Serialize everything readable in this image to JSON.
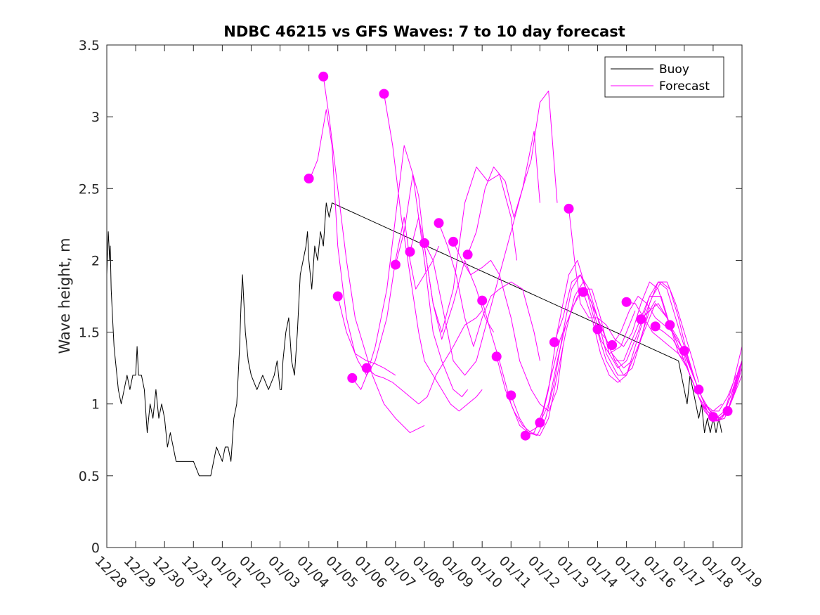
{
  "chart_data": {
    "type": "line",
    "title": "NDBC 46215 vs GFS Waves: 7 to 10 day forecast",
    "xlabel": "",
    "ylabel": "Wave height, m",
    "xlim": [
      0,
      22
    ],
    "ylim": [
      0,
      3.5
    ],
    "x_unit": "days since 12/28",
    "yticks": [
      0,
      0.5,
      1,
      1.5,
      2,
      2.5,
      3,
      3.5
    ],
    "ytick_labels": [
      "0",
      "0.5",
      "1",
      "1.5",
      "2",
      "2.5",
      "3",
      "3.5"
    ],
    "xticks": [
      0,
      1,
      2,
      3,
      4,
      5,
      6,
      7,
      8,
      9,
      10,
      11,
      12,
      13,
      14,
      15,
      16,
      17,
      18,
      19,
      20,
      21,
      22
    ],
    "xtick_labels": [
      "12/28",
      "12/29",
      "12/30",
      "12/31",
      "01/01",
      "01/02",
      "01/03",
      "01/04",
      "01/05",
      "01/06",
      "01/07",
      "01/08",
      "01/09",
      "01/10",
      "01/11",
      "01/12",
      "01/13",
      "01/14",
      "01/15",
      "01/16",
      "01/17",
      "01/18",
      "01/19"
    ],
    "legend": {
      "position": "top-right",
      "entries": [
        "Buoy",
        "Forecast"
      ]
    },
    "colors": {
      "buoy": "#000000",
      "forecast": "#ff00ff"
    },
    "series": [
      {
        "name": "Buoy",
        "x": [
          0.0,
          0.05,
          0.1,
          0.12,
          0.15,
          0.2,
          0.25,
          0.3,
          0.35,
          0.4,
          0.5,
          0.6,
          0.7,
          0.8,
          0.9,
          1.0,
          1.05,
          1.1,
          1.2,
          1.3,
          1.4,
          1.5,
          1.6,
          1.7,
          1.8,
          1.9,
          2.0,
          2.1,
          2.2,
          2.3,
          2.4,
          2.6,
          2.8,
          3.0,
          3.2,
          3.4,
          3.6,
          3.8,
          4.0,
          4.1,
          4.2,
          4.3,
          4.4,
          4.5,
          4.55,
          4.6,
          4.65,
          4.7,
          4.8,
          4.9,
          5.0,
          5.2,
          5.4,
          5.6,
          5.8,
          5.9,
          6.0,
          6.05,
          6.1,
          6.2,
          6.3,
          6.4,
          6.5,
          6.6,
          6.7,
          6.8,
          6.9,
          6.95,
          7.0,
          7.1,
          7.2,
          7.3,
          7.4,
          7.5,
          7.6,
          7.7,
          7.8,
          19.8,
          19.9,
          20.0,
          20.1,
          20.2,
          20.3,
          20.4,
          20.5,
          20.6,
          20.7,
          20.8,
          20.9,
          21.0,
          21.1,
          21.2,
          21.3
        ],
        "values": [
          1.9,
          2.2,
          2.0,
          2.1,
          1.8,
          1.6,
          1.4,
          1.3,
          1.2,
          1.1,
          1.0,
          1.1,
          1.2,
          1.1,
          1.2,
          1.2,
          1.4,
          1.2,
          1.2,
          1.1,
          0.8,
          1.0,
          0.9,
          1.1,
          0.9,
          1.0,
          0.9,
          0.7,
          0.8,
          0.7,
          0.6,
          0.6,
          0.6,
          0.6,
          0.5,
          0.5,
          0.5,
          0.7,
          0.6,
          0.7,
          0.7,
          0.6,
          0.9,
          1.0,
          1.2,
          1.4,
          1.7,
          1.9,
          1.5,
          1.3,
          1.2,
          1.1,
          1.2,
          1.1,
          1.2,
          1.3,
          1.1,
          1.1,
          1.3,
          1.5,
          1.6,
          1.3,
          1.2,
          1.5,
          1.9,
          2.0,
          2.1,
          2.2,
          2.0,
          1.8,
          2.1,
          2.0,
          2.2,
          2.1,
          2.4,
          2.3,
          2.4,
          1.3,
          1.2,
          1.1,
          1.0,
          1.2,
          1.1,
          1.0,
          0.9,
          1.0,
          0.8,
          0.9,
          0.8,
          0.9,
          0.8,
          0.9,
          0.8
        ]
      },
      {
        "name": "Forecast",
        "x": [
          7.0,
          7.3,
          7.6,
          7.8,
          8.0,
          8.3,
          8.6,
          9.0,
          9.3,
          9.6,
          10.0
        ],
        "values": [
          2.55,
          2.7,
          3.05,
          2.8,
          2.1,
          1.6,
          1.35,
          1.3,
          1.28,
          1.25,
          1.2
        ]
      },
      {
        "name": "Forecast",
        "x": [
          7.5,
          7.7,
          8.0,
          8.3,
          8.6,
          8.9,
          9.2,
          9.6,
          10.0,
          10.5,
          11.0
        ],
        "values": [
          3.28,
          3.0,
          2.5,
          2.0,
          1.6,
          1.4,
          1.2,
          1.0,
          0.9,
          0.8,
          0.85
        ]
      },
      {
        "name": "Forecast",
        "x": [
          8.0,
          8.3,
          8.7,
          9.0,
          9.3,
          9.7,
          10.0,
          10.3,
          10.5,
          10.7,
          11.0,
          11.3,
          11.5
        ],
        "values": [
          1.75,
          1.5,
          1.3,
          1.2,
          1.3,
          1.6,
          2.0,
          2.3,
          2.0,
          1.8,
          1.9,
          2.0,
          2.1
        ]
      },
      {
        "name": "Forecast",
        "x": [
          8.5,
          8.8,
          9.0,
          9.3,
          9.7,
          10.0,
          10.3,
          10.6,
          11.0,
          11.3,
          11.6,
          12.0,
          12.3,
          12.5
        ],
        "values": [
          1.18,
          1.1,
          1.2,
          1.4,
          1.8,
          2.3,
          2.8,
          2.6,
          2.0,
          1.5,
          1.3,
          1.1,
          1.05,
          1.1
        ]
      },
      {
        "name": "Forecast",
        "x": [
          9.0,
          9.3,
          9.6,
          9.9,
          10.2,
          10.5,
          10.8,
          11.1,
          11.4,
          11.7,
          12.0,
          12.4,
          12.8,
          13.0
        ],
        "values": [
          1.25,
          1.2,
          1.18,
          1.15,
          1.1,
          1.05,
          1.0,
          1.05,
          1.2,
          1.3,
          1.4,
          1.55,
          1.6,
          1.65
        ]
      },
      {
        "name": "Forecast",
        "x": [
          9.6,
          9.9,
          10.2,
          10.5,
          10.8,
          11.0,
          11.3,
          11.6,
          11.9,
          12.2,
          12.5,
          12.8,
          13.0
        ],
        "values": [
          3.16,
          2.8,
          2.3,
          1.9,
          1.5,
          1.3,
          1.2,
          1.1,
          1.0,
          0.95,
          1.0,
          1.05,
          1.1
        ]
      },
      {
        "name": "Forecast",
        "x": [
          10.0,
          10.3,
          10.6,
          10.8,
          11.0,
          11.3,
          11.6,
          12.0,
          12.4,
          12.8,
          13.1,
          13.4
        ],
        "values": [
          1.97,
          2.2,
          2.6,
          2.45,
          2.1,
          1.7,
          1.45,
          1.7,
          2.0,
          1.8,
          1.6,
          1.5
        ]
      },
      {
        "name": "Forecast",
        "x": [
          10.5,
          10.8,
          11.0,
          11.3,
          11.6,
          12.0,
          12.4,
          12.8,
          13.2,
          13.6,
          14.0,
          14.2
        ],
        "values": [
          2.06,
          2.3,
          2.1,
          1.7,
          1.5,
          1.8,
          2.4,
          2.65,
          2.55,
          2.6,
          2.3,
          2.0
        ]
      },
      {
        "name": "Forecast",
        "x": [
          11.0,
          11.3,
          11.6,
          12.0,
          12.4,
          12.8,
          13.2,
          13.6,
          14.0,
          14.4,
          14.8,
          15.0
        ],
        "values": [
          2.12,
          2.0,
          1.7,
          1.3,
          1.2,
          1.3,
          1.6,
          1.9,
          2.2,
          2.5,
          2.9,
          2.4
        ]
      },
      {
        "name": "Forecast",
        "x": [
          11.5,
          11.8,
          12.1,
          12.4,
          12.7,
          13.0,
          13.3,
          13.6,
          14.0,
          14.4,
          14.8,
          15.0
        ],
        "values": [
          2.26,
          2.1,
          1.9,
          1.6,
          1.4,
          1.6,
          1.75,
          1.8,
          1.85,
          1.8,
          1.5,
          1.3
        ]
      },
      {
        "name": "Forecast",
        "x": [
          12.0,
          12.3,
          12.6,
          13.0,
          13.3,
          13.6,
          14.0,
          14.3,
          14.7,
          15.0,
          15.3,
          15.6,
          15.8
        ],
        "values": [
          2.13,
          2.0,
          1.9,
          1.95,
          2.0,
          1.9,
          1.6,
          1.3,
          1.1,
          1.0,
          0.95,
          1.1,
          1.4
        ]
      },
      {
        "name": "Forecast",
        "x": [
          12.5,
          12.8,
          13.1,
          13.4,
          13.8,
          14.1,
          14.4,
          14.7,
          15.0,
          15.3,
          15.6
        ],
        "values": [
          2.04,
          2.2,
          2.5,
          2.65,
          2.55,
          2.3,
          2.5,
          2.7,
          3.1,
          3.18,
          2.4
        ]
      },
      {
        "name": "Forecast",
        "x": [
          13.0,
          13.3,
          13.6,
          14.0,
          14.3,
          14.6,
          15.0,
          15.3,
          15.6,
          16.0,
          16.3,
          16.6,
          17.0,
          17.3,
          17.6,
          17.8
        ],
        "values": [
          1.72,
          1.5,
          1.3,
          1.0,
          0.85,
          0.8,
          0.85,
          1.1,
          1.5,
          1.9,
          2.0,
          1.8,
          1.5,
          1.3,
          1.2,
          1.15
        ]
      },
      {
        "name": "Forecast",
        "x": [
          13.5,
          13.8,
          14.1,
          14.4,
          14.7,
          15.0,
          15.3,
          15.6,
          15.9,
          16.2,
          16.5,
          16.8,
          17.1,
          17.4,
          17.8,
          18.1,
          18.3
        ],
        "values": [
          1.33,
          1.1,
          0.95,
          0.85,
          0.8,
          0.78,
          0.9,
          1.2,
          1.5,
          1.75,
          1.85,
          1.7,
          1.45,
          1.35,
          1.4,
          1.55,
          1.65
        ]
      },
      {
        "name": "Forecast",
        "x": [
          14.0,
          14.3,
          14.6,
          14.9,
          15.2,
          15.5,
          15.8,
          16.1,
          16.4,
          16.7,
          17.0,
          17.3,
          17.7,
          18.0,
          18.4,
          18.8,
          19.0
        ],
        "values": [
          1.06,
          0.9,
          0.8,
          0.78,
          0.9,
          1.15,
          1.5,
          1.8,
          1.9,
          1.8,
          1.6,
          1.35,
          1.2,
          1.2,
          1.4,
          1.65,
          1.72
        ]
      },
      {
        "name": "Forecast",
        "x": [
          14.5,
          14.8,
          15.1,
          15.4,
          15.7,
          16.0,
          16.3,
          16.6,
          16.9,
          17.2,
          17.5,
          17.9,
          18.2,
          18.6,
          19.0,
          19.4,
          19.6
        ],
        "values": [
          0.78,
          0.8,
          0.95,
          1.2,
          1.45,
          1.6,
          1.75,
          1.8,
          1.65,
          1.5,
          1.35,
          1.25,
          1.3,
          1.5,
          1.7,
          1.6,
          1.5
        ]
      },
      {
        "name": "Forecast",
        "x": [
          15.0,
          15.3,
          15.6,
          15.9,
          16.2,
          16.5,
          16.8,
          17.1,
          17.4,
          17.7,
          18.0,
          18.4,
          18.8,
          19.2,
          19.5,
          19.8,
          20.0
        ],
        "values": [
          0.87,
          1.0,
          1.3,
          1.55,
          1.7,
          1.8,
          1.8,
          1.6,
          1.35,
          1.25,
          1.3,
          1.5,
          1.75,
          1.75,
          1.55,
          1.35,
          1.3
        ]
      },
      {
        "name": "Forecast",
        "x": [
          15.5,
          15.8,
          16.1,
          16.4,
          16.7,
          17.0,
          17.3,
          17.6,
          17.9,
          18.2,
          18.5,
          18.8,
          19.1,
          19.4,
          19.7,
          20.0,
          20.3,
          20.5
        ],
        "values": [
          1.43,
          1.6,
          1.85,
          1.9,
          1.75,
          1.6,
          1.45,
          1.3,
          1.2,
          1.25,
          1.45,
          1.7,
          1.85,
          1.85,
          1.7,
          1.5,
          1.3,
          1.15
        ]
      },
      {
        "name": "Forecast",
        "x": [
          16.0,
          16.2,
          16.4,
          16.7,
          17.0,
          17.3,
          17.6,
          17.9,
          18.2,
          18.5,
          18.8,
          19.1,
          19.4,
          19.7,
          20.0,
          20.3,
          20.6,
          20.8
        ],
        "values": [
          2.36,
          2.0,
          1.7,
          1.6,
          1.6,
          1.55,
          1.45,
          1.4,
          1.5,
          1.7,
          1.85,
          1.8,
          1.6,
          1.45,
          1.3,
          1.15,
          1.0,
          0.95
        ]
      },
      {
        "name": "Forecast",
        "x": [
          16.5,
          16.8,
          17.1,
          17.4,
          17.7,
          18.0,
          18.3,
          18.6,
          18.9,
          19.2,
          19.5,
          19.8,
          20.1,
          20.4,
          20.7,
          21.0,
          21.3
        ],
        "values": [
          1.78,
          1.6,
          1.35,
          1.2,
          1.15,
          1.2,
          1.4,
          1.6,
          1.75,
          1.85,
          1.8,
          1.6,
          1.35,
          1.15,
          1.0,
          0.95,
          1.0
        ]
      },
      {
        "name": "Forecast",
        "x": [
          17.0,
          17.3,
          17.6,
          17.9,
          18.2,
          18.5,
          18.8,
          19.1,
          19.4,
          19.7,
          20.0,
          20.3,
          20.6,
          20.9,
          21.2,
          21.5,
          21.8
        ],
        "values": [
          1.52,
          1.45,
          1.3,
          1.3,
          1.45,
          1.6,
          1.75,
          1.85,
          1.8,
          1.6,
          1.4,
          1.2,
          1.05,
          0.95,
          0.95,
          1.05,
          1.2
        ]
      },
      {
        "name": "Forecast",
        "x": [
          17.5,
          17.8,
          18.1,
          18.4,
          18.7,
          19.0,
          19.3,
          19.6,
          19.9,
          20.2,
          20.5,
          20.8,
          21.1,
          21.4,
          21.7,
          22.0
        ],
        "values": [
          1.41,
          1.5,
          1.65,
          1.75,
          1.7,
          1.6,
          1.55,
          1.5,
          1.4,
          1.2,
          1.05,
          0.95,
          0.9,
          0.95,
          1.1,
          1.3
        ]
      },
      {
        "name": "Forecast",
        "x": [
          18.0,
          18.3,
          18.6,
          18.9,
          19.2,
          19.5,
          19.8,
          20.1,
          20.4,
          20.7,
          21.0,
          21.3,
          21.6,
          21.9,
          22.0
        ],
        "values": [
          1.71,
          1.7,
          1.6,
          1.5,
          1.45,
          1.4,
          1.35,
          1.25,
          1.1,
          0.95,
          0.88,
          0.9,
          1.05,
          1.25,
          1.3
        ]
      },
      {
        "name": "Forecast",
        "x": [
          18.5,
          18.8,
          19.1,
          19.4,
          19.7,
          20.0,
          20.3,
          20.6,
          20.9,
          21.2,
          21.5,
          21.8,
          22.0
        ],
        "values": [
          1.59,
          1.65,
          1.7,
          1.6,
          1.45,
          1.3,
          1.15,
          1.0,
          0.9,
          0.88,
          0.95,
          1.15,
          1.3
        ]
      },
      {
        "name": "Forecast",
        "x": [
          19.0,
          19.3,
          19.6,
          19.9,
          20.2,
          20.5,
          20.8,
          21.1,
          21.4,
          21.7,
          22.0
        ],
        "values": [
          1.54,
          1.5,
          1.45,
          1.35,
          1.2,
          1.05,
          0.95,
          0.88,
          0.9,
          1.05,
          1.25
        ]
      },
      {
        "name": "Forecast",
        "x": [
          19.5,
          19.8,
          20.1,
          20.4,
          20.7,
          21.0,
          21.3,
          21.6,
          21.9,
          22.0
        ],
        "values": [
          1.55,
          1.45,
          1.3,
          1.15,
          1.0,
          0.92,
          0.9,
          1.0,
          1.2,
          1.3
        ]
      },
      {
        "name": "Forecast",
        "x": [
          20.0,
          20.3,
          20.6,
          20.9,
          21.2,
          21.5,
          21.8,
          22.0
        ],
        "values": [
          1.37,
          1.2,
          1.05,
          0.95,
          0.9,
          0.95,
          1.1,
          1.2
        ]
      },
      {
        "name": "Forecast",
        "x": [
          20.5,
          20.8,
          21.1,
          21.4,
          21.7,
          22.0
        ],
        "values": [
          1.1,
          0.95,
          0.9,
          0.95,
          1.15,
          1.4
        ]
      }
    ],
    "forecast_markers": {
      "x": [
        7.0,
        7.5,
        8.0,
        8.5,
        9.0,
        9.6,
        10.0,
        10.5,
        11.0,
        11.5,
        12.0,
        12.5,
        13.0,
        13.5,
        14.0,
        14.5,
        15.0,
        15.5,
        16.0,
        16.5,
        17.0,
        17.5,
        18.0,
        18.5,
        19.0,
        19.5,
        20.0,
        20.5,
        21.0,
        21.5
      ],
      "values": [
        2.57,
        3.28,
        1.75,
        1.18,
        1.25,
        3.16,
        1.97,
        2.06,
        2.12,
        2.26,
        2.13,
        2.04,
        1.72,
        1.33,
        1.06,
        0.78,
        0.87,
        1.43,
        2.36,
        1.78,
        1.52,
        1.41,
        1.71,
        1.59,
        1.54,
        1.55,
        1.37,
        1.1,
        0.91,
        0.95
      ]
    }
  }
}
